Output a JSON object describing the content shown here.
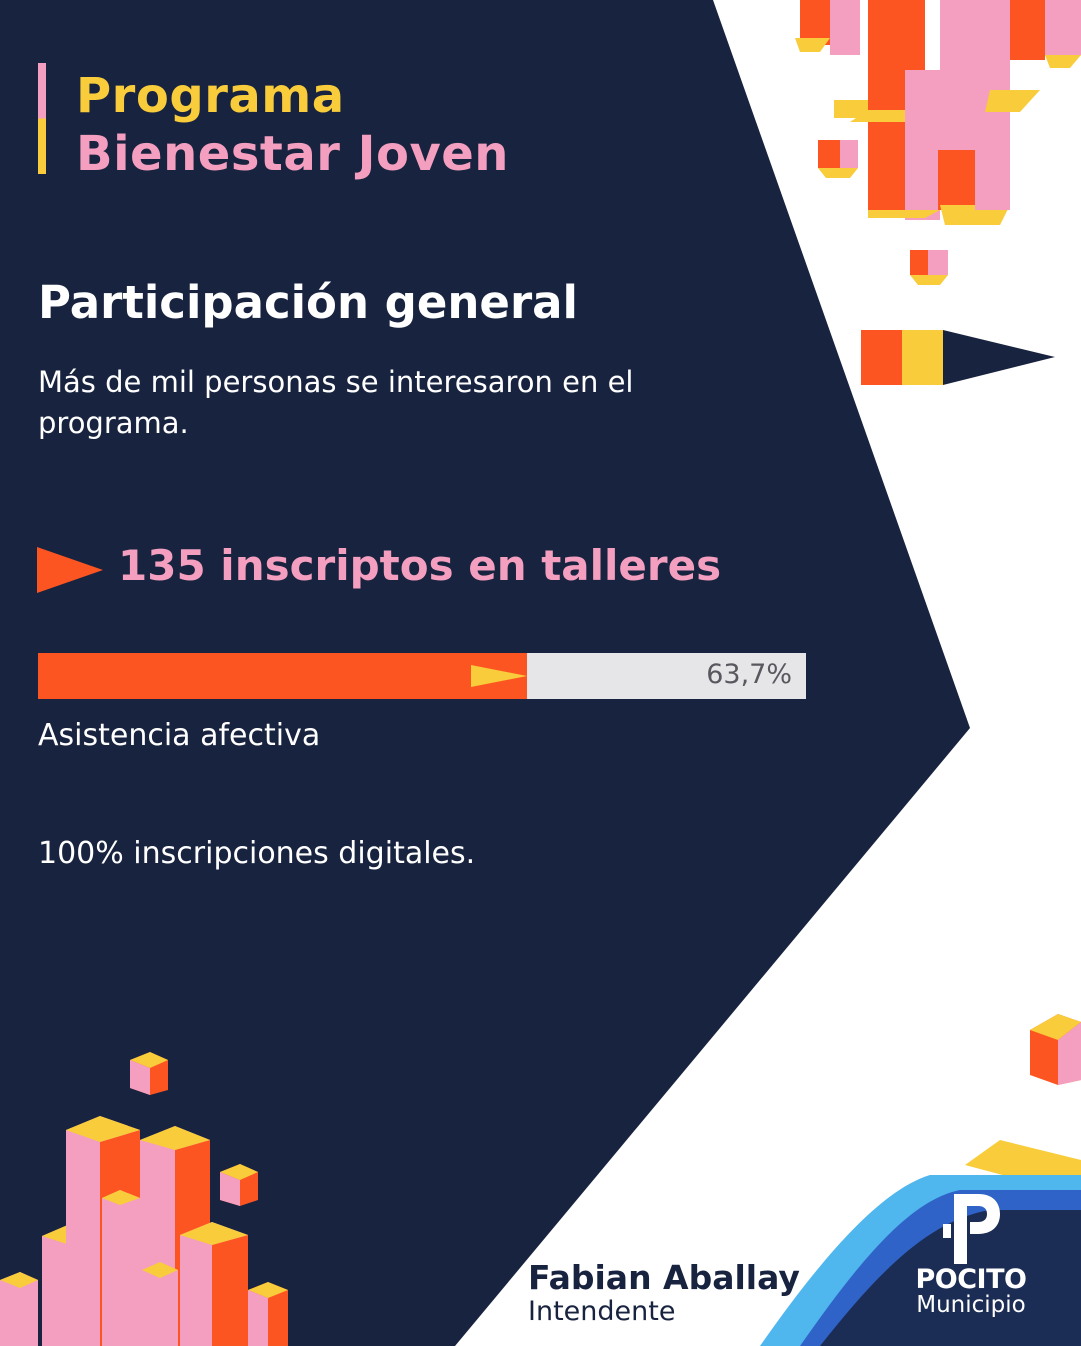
{
  "header": {
    "title_line1": "Programa",
    "title_line2": "Bienestar Joven"
  },
  "section": {
    "heading": "Participación general",
    "description": "Más de mil personas se interesaron en el programa."
  },
  "highlight": {
    "text": "135 inscriptos en talleres"
  },
  "attendance": {
    "percent_label": "63,7%",
    "fraction": 0.637,
    "label": "Asistencia afectiva"
  },
  "digital": {
    "text": "100% inscripciones digitales."
  },
  "signature": {
    "name": "Fabian Aballay",
    "role": "Intendente"
  },
  "logo": {
    "name": "POCITO",
    "subtitle": "Municipio"
  },
  "colors": {
    "navy": "#18233f",
    "yellow": "#f8cc3a",
    "pink": "#f49fbf",
    "orange": "#fc5522",
    "track": "#e6e6e8",
    "blue": "#2f63c8",
    "light_blue": "#4fb6ee"
  }
}
